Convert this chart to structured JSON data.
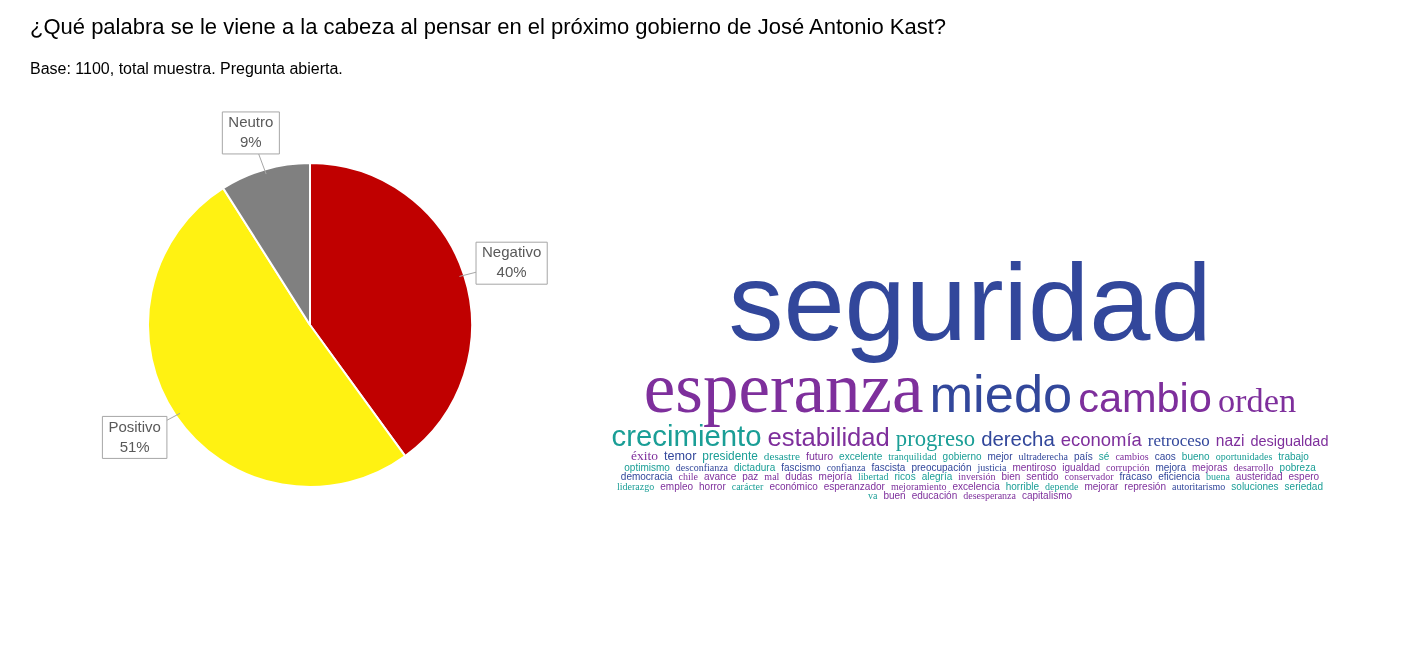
{
  "chart_data": [
    {
      "type": "pie",
      "title": "¿Qué palabra se le viene a la cabeza al pensar en el próximo gobierno de José Antonio Kast?",
      "subtitle": "Base: 1100, total muestra. Pregunta abierta.",
      "categories": [
        "Negativo",
        "Positivo",
        "Neutro"
      ],
      "values": [
        40,
        51,
        9
      ],
      "colors": [
        "#c00000",
        "#fff212",
        "#808080"
      ],
      "value_labels": [
        "40%",
        "51%",
        "9%"
      ]
    },
    {
      "type": "other",
      "annotations": [
        "seguridad",
        "esperanza",
        "miedo",
        "cambio",
        "orden",
        "crecimiento",
        "estabilidad",
        "progreso",
        "derecha",
        "economía",
        "retroceso",
        "nazi",
        "desigualdad",
        "éxito",
        "temor",
        "presidente",
        "desastre",
        "futuro",
        "excelente",
        "tranquilidad",
        "gobierno",
        "mejor",
        "ultraderecha",
        "país",
        "sé",
        "cambios",
        "caos",
        "bueno",
        "oportunidades",
        "trabajo",
        "optimismo",
        "desconfianza",
        "dictadura",
        "fascismo",
        "confianza",
        "fascista",
        "preocupación",
        "justicia",
        "mentiroso",
        "igualdad",
        "corrupción",
        "mejora",
        "mejoras",
        "desarrollo",
        "pobreza",
        "democracia",
        "chile",
        "avance",
        "paz",
        "mal",
        "dudas",
        "mejoría",
        "libertad",
        "ricos",
        "alegría",
        "inversión",
        "bien",
        "sentido",
        "conservador",
        "fracaso",
        "eficiencia",
        "buena",
        "austeridad",
        "espero",
        "liderazgo",
        "empleo",
        "horror",
        "carácter",
        "económico",
        "esperanzador",
        "mejoramiento",
        "excelencia",
        "horrible",
        "depende",
        "mejorar",
        "represión",
        "autoritarismo",
        "soluciones",
        "seriedad",
        "va",
        "buen",
        "educación",
        "desesperanza",
        "capitalismo"
      ],
      "colors": [
        "#32479b",
        "#7e2f9c",
        "#32479b",
        "#7e2f9c",
        "#7e2f9c",
        "#1a9e96",
        "#7e2f9c",
        "#1a9e96",
        "#32479b",
        "#7e2f9c",
        "#32479b",
        "#7e2f9c",
        "#7e2f9c",
        "#7e2f9c",
        "#32479b",
        "#1a9e96",
        "#1a9e96",
        "#7e2f9c",
        "#1a9e96",
        "#1a9e96",
        "#1a9e96",
        "#32479b",
        "#32479b",
        "#32479b",
        "#1a9e96",
        "#7e2f9c",
        "#32479b",
        "#1a9e96",
        "#1a9e96",
        "#1a9e96",
        "#1a9e96",
        "#32479b",
        "#1a9e96",
        "#32479b",
        "#32479b",
        "#32479b",
        "#32479b",
        "#32479b",
        "#7e2f9c",
        "#7e2f9c",
        "#7e2f9c",
        "#32479b",
        "#7e2f9c",
        "#7e2f9c",
        "#1a9e96",
        "#32479b",
        "#7e2f9c",
        "#7e2f9c",
        "#7e2f9c",
        "#7e2f9c",
        "#7e2f9c",
        "#7e2f9c",
        "#1a9e96",
        "#1a9e96",
        "#1a9e96",
        "#7e2f9c",
        "#7e2f9c",
        "#7e2f9c",
        "#7e2f9c",
        "#32479b",
        "#32479b",
        "#1a9e96",
        "#7e2f9c",
        "#7e2f9c",
        "#1a9e96",
        "#7e2f9c",
        "#7e2f9c",
        "#1a9e96",
        "#7e2f9c",
        "#7e2f9c",
        "#7e2f9c",
        "#7e2f9c",
        "#1a9e96",
        "#1a9e96",
        "#7e2f9c",
        "#7e2f9c",
        "#32479b",
        "#1a9e96",
        "#1a9e96",
        "#1a9e96",
        "#7e2f9c",
        "#7e2f9c",
        "#7e2f9c",
        "#7e2f9c"
      ]
    }
  ]
}
